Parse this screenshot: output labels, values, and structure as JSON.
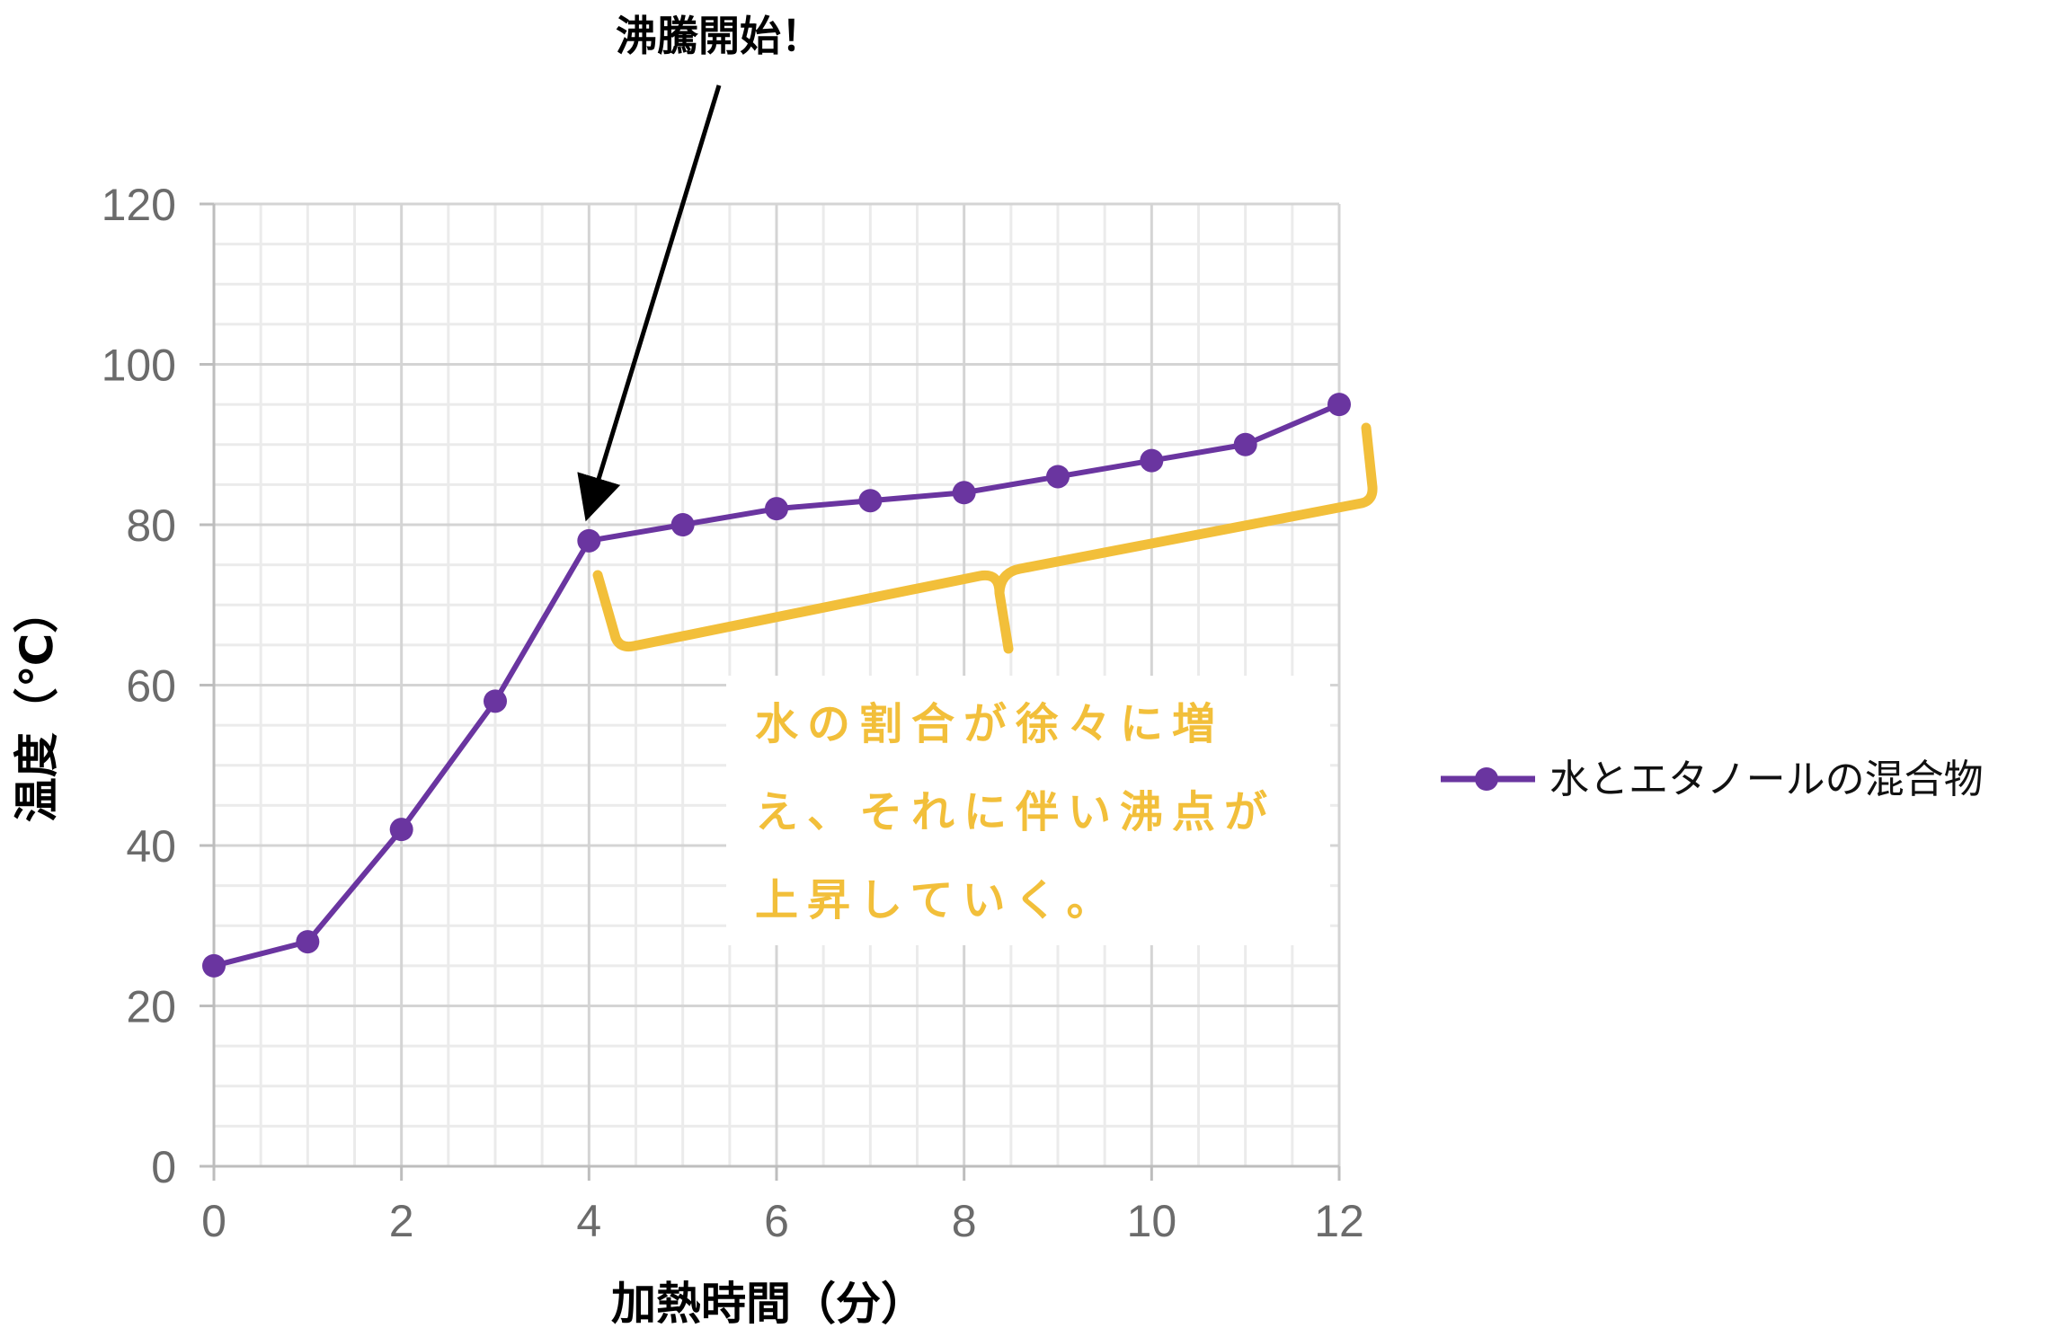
{
  "chart_data": {
    "type": "line",
    "title": "",
    "xlabel": "加熱時間（分）",
    "ylabel": "温度（℃）",
    "xlim": [
      0,
      12
    ],
    "ylim": [
      0,
      120
    ],
    "x_ticks": [
      0,
      2,
      4,
      6,
      8,
      10,
      12
    ],
    "y_ticks": [
      0,
      20,
      40,
      60,
      80,
      100,
      120
    ],
    "grid": true,
    "legend_position": "right",
    "series": [
      {
        "name": "水とエタノールの混合物",
        "color": "#6a35a0",
        "marker": "circle",
        "x": [
          0,
          1,
          2,
          3,
          4,
          5,
          6,
          7,
          8,
          9,
          10,
          11,
          12
        ],
        "y": [
          25,
          28,
          42,
          58,
          78,
          80,
          82,
          83,
          84,
          86,
          88,
          90,
          95
        ]
      }
    ],
    "annotations": [
      {
        "text": "沸騰開始！",
        "points_to": {
          "x": 4,
          "y": 78
        }
      },
      {
        "lines": [
          "水の割合が徐々に増",
          "え、それに伴い沸点が",
          "上昇していく。"
        ],
        "color": "#f2bf3a",
        "brace_span_x": [
          4,
          12
        ]
      }
    ]
  }
}
